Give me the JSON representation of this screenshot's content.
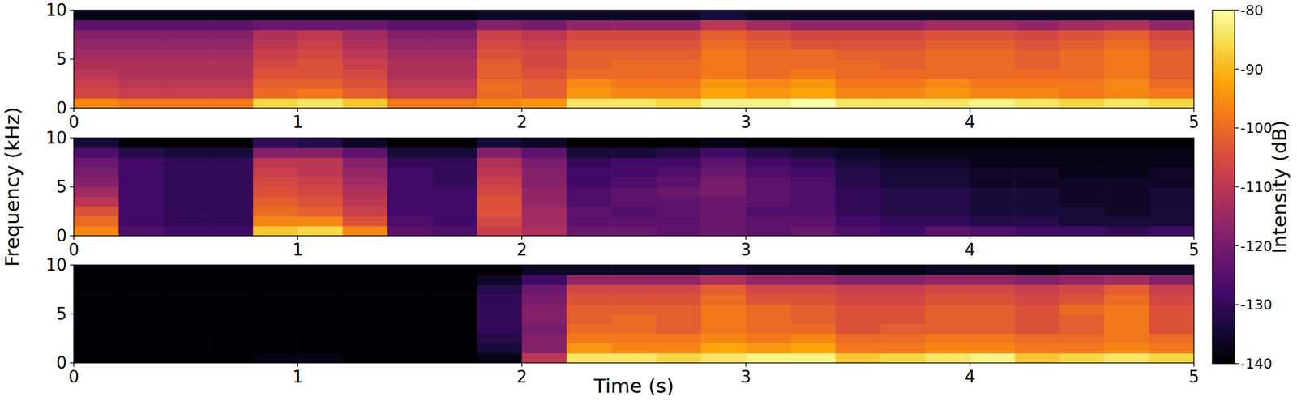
{
  "chart_data": {
    "type": "heatmap",
    "x_label": "Time (s)",
    "y_label": "Frequency (kHz)",
    "colorbar": {
      "label": "Intensity (dB)",
      "range": [
        -140,
        -80
      ],
      "ticks": [
        -140,
        -130,
        -120,
        -110,
        -100,
        -90,
        -80
      ]
    },
    "panels": [
      {
        "xlim": [
          0,
          5
        ],
        "ylim": [
          0,
          10
        ],
        "xticks": [
          0,
          1,
          2,
          3,
          4,
          5
        ],
        "yticks": [
          0,
          5,
          10
        ],
        "x_edges": [
          0,
          0.2,
          0.4,
          0.6,
          0.8,
          1,
          1.2,
          1.4,
          1.6,
          1.8,
          2,
          2.2,
          2.4,
          2.6,
          2.8,
          3,
          3.2,
          3.4,
          3.6,
          3.8,
          4,
          4.2,
          4.4,
          4.6,
          4.8,
          5
        ],
        "y_edges": [
          0,
          1,
          2,
          3,
          4,
          5,
          6,
          7,
          8,
          9,
          10
        ],
        "values": [
          [
            -96,
            -98,
            -98,
            -98,
            -86,
            -84,
            -88,
            -98,
            -98,
            -96,
            -94,
            -84,
            -84,
            -86,
            -82,
            -82,
            -80,
            -84,
            -84,
            -84,
            -82,
            -84,
            -86,
            -84,
            -86
          ],
          [
            -106,
            -108,
            -108,
            -108,
            -100,
            -98,
            -102,
            -108,
            -108,
            -100,
            -102,
            -94,
            -96,
            -96,
            -92,
            -94,
            -92,
            -96,
            -96,
            -94,
            -96,
            -96,
            -98,
            -96,
            -98
          ],
          [
            -108,
            -110,
            -110,
            -110,
            -102,
            -102,
            -104,
            -110,
            -110,
            -100,
            -102,
            -96,
            -98,
            -98,
            -94,
            -96,
            -94,
            -98,
            -98,
            -96,
            -98,
            -98,
            -98,
            -96,
            -100
          ],
          [
            -110,
            -112,
            -112,
            -112,
            -104,
            -104,
            -106,
            -112,
            -112,
            -102,
            -104,
            -100,
            -100,
            -100,
            -98,
            -100,
            -98,
            -100,
            -100,
            -100,
            -100,
            -100,
            -100,
            -98,
            -102
          ],
          [
            -112,
            -112,
            -112,
            -112,
            -106,
            -104,
            -108,
            -112,
            -112,
            -102,
            -106,
            -102,
            -100,
            -100,
            -98,
            -100,
            -100,
            -100,
            -102,
            -100,
            -100,
            -102,
            -100,
            -98,
            -102
          ],
          [
            -114,
            -114,
            -114,
            -114,
            -108,
            -106,
            -110,
            -114,
            -114,
            -104,
            -106,
            -102,
            -102,
            -102,
            -98,
            -100,
            -100,
            -102,
            -102,
            -100,
            -100,
            -102,
            -100,
            -98,
            -102
          ],
          [
            -116,
            -116,
            -116,
            -116,
            -110,
            -108,
            -112,
            -116,
            -116,
            -106,
            -108,
            -104,
            -104,
            -104,
            -100,
            -102,
            -104,
            -104,
            -104,
            -102,
            -102,
            -104,
            -102,
            -100,
            -104
          ],
          [
            -118,
            -118,
            -118,
            -118,
            -112,
            -110,
            -114,
            -118,
            -118,
            -108,
            -110,
            -106,
            -106,
            -106,
            -102,
            -104,
            -106,
            -106,
            -106,
            -104,
            -104,
            -106,
            -104,
            -102,
            -106
          ],
          [
            -124,
            -124,
            -124,
            -124,
            -122,
            -122,
            -122,
            -124,
            -124,
            -118,
            -120,
            -116,
            -116,
            -116,
            -110,
            -114,
            -116,
            -116,
            -116,
            -114,
            -114,
            -116,
            -114,
            -112,
            -116
          ],
          [
            -138,
            -138,
            -138,
            -138,
            -138,
            -138,
            -138,
            -138,
            -138,
            -136,
            -136,
            -136,
            -136,
            -136,
            -134,
            -136,
            -136,
            -136,
            -136,
            -136,
            -136,
            -136,
            -136,
            -136,
            -136
          ]
        ]
      },
      {
        "xlim": [
          0,
          5
        ],
        "ylim": [
          0,
          10
        ],
        "xticks": [
          0,
          1,
          2,
          3,
          4,
          5
        ],
        "yticks": [
          0,
          5,
          10
        ],
        "x_edges": [
          0,
          0.2,
          0.4,
          0.6,
          0.8,
          1,
          1.2,
          1.4,
          1.6,
          1.8,
          2,
          2.2,
          2.4,
          2.6,
          2.8,
          3,
          3.2,
          3.4,
          3.6,
          3.8,
          4,
          4.2,
          4.4,
          4.6,
          4.8,
          5
        ],
        "y_edges": [
          0,
          1,
          2,
          3,
          4,
          5,
          6,
          7,
          8,
          9,
          10
        ],
        "values": [
          [
            -96,
            -126,
            -128,
            -128,
            -88,
            -86,
            -96,
            -124,
            -126,
            -108,
            -112,
            -122,
            -122,
            -124,
            -122,
            -124,
            -122,
            -126,
            -128,
            -124,
            -126,
            -128,
            -128,
            -130,
            -128
          ],
          [
            -100,
            -128,
            -130,
            -130,
            -96,
            -96,
            -104,
            -126,
            -128,
            -106,
            -114,
            -124,
            -124,
            -124,
            -122,
            -124,
            -124,
            -128,
            -130,
            -130,
            -132,
            -132,
            -134,
            -134,
            -134
          ],
          [
            -104,
            -128,
            -130,
            -130,
            -100,
            -102,
            -108,
            -128,
            -128,
            -104,
            -114,
            -124,
            -126,
            -124,
            -122,
            -126,
            -126,
            -130,
            -132,
            -132,
            -134,
            -134,
            -134,
            -136,
            -134
          ],
          [
            -110,
            -128,
            -130,
            -130,
            -102,
            -104,
            -110,
            -128,
            -128,
            -104,
            -116,
            -126,
            -124,
            -124,
            -122,
            -124,
            -126,
            -130,
            -132,
            -132,
            -134,
            -134,
            -136,
            -136,
            -134
          ],
          [
            -114,
            -128,
            -130,
            -130,
            -104,
            -106,
            -112,
            -128,
            -128,
            -106,
            -116,
            -126,
            -124,
            -122,
            -120,
            -124,
            -126,
            -130,
            -132,
            -132,
            -134,
            -134,
            -136,
            -136,
            -134
          ],
          [
            -118,
            -128,
            -130,
            -130,
            -106,
            -108,
            -114,
            -128,
            -130,
            -108,
            -118,
            -128,
            -126,
            -124,
            -120,
            -124,
            -126,
            -132,
            -134,
            -134,
            -136,
            -136,
            -136,
            -136,
            -136
          ],
          [
            -120,
            -128,
            -130,
            -130,
            -108,
            -110,
            -116,
            -128,
            -130,
            -110,
            -118,
            -128,
            -128,
            -126,
            -122,
            -126,
            -128,
            -132,
            -134,
            -134,
            -136,
            -136,
            -138,
            -138,
            -136
          ],
          [
            -122,
            -128,
            -130,
            -130,
            -110,
            -110,
            -118,
            -130,
            -130,
            -112,
            -120,
            -130,
            -128,
            -128,
            -124,
            -128,
            -130,
            -134,
            -136,
            -136,
            -138,
            -138,
            -138,
            -138,
            -138
          ],
          [
            -126,
            -132,
            -134,
            -134,
            -118,
            -118,
            -124,
            -134,
            -134,
            -118,
            -124,
            -134,
            -134,
            -132,
            -128,
            -132,
            -134,
            -136,
            -138,
            -138,
            -138,
            -138,
            -138,
            -138,
            -138
          ],
          [
            -134,
            -140,
            -140,
            -140,
            -130,
            -132,
            -136,
            -140,
            -140,
            -134,
            -136,
            -140,
            -140,
            -140,
            -138,
            -140,
            -140,
            -140,
            -140,
            -140,
            -140,
            -140,
            -140,
            -140,
            -140
          ]
        ]
      },
      {
        "xlim": [
          0,
          5
        ],
        "ylim": [
          0,
          10
        ],
        "xticks": [
          0,
          1,
          2,
          3,
          4,
          5
        ],
        "yticks": [
          0,
          5,
          10
        ],
        "x_edges": [
          0,
          0.2,
          0.4,
          0.6,
          0.8,
          1,
          1.2,
          1.4,
          1.6,
          1.8,
          2,
          2.2,
          2.4,
          2.6,
          2.8,
          3,
          3.2,
          3.4,
          3.6,
          3.8,
          4,
          4.2,
          4.4,
          4.6,
          4.8,
          5
        ],
        "y_edges": [
          0,
          1,
          2,
          3,
          4,
          5,
          6,
          7,
          8,
          9,
          10
        ],
        "values": [
          [
            -140,
            -140,
            -140,
            -140,
            -138,
            -138,
            -140,
            -140,
            -140,
            -138,
            -110,
            -84,
            -84,
            -86,
            -84,
            -82,
            -82,
            -88,
            -86,
            -84,
            -82,
            -88,
            -86,
            -84,
            -86
          ],
          [
            -140,
            -140,
            -140,
            -140,
            -140,
            -140,
            -140,
            -140,
            -140,
            -134,
            -118,
            -94,
            -96,
            -96,
            -92,
            -94,
            -92,
            -98,
            -98,
            -96,
            -96,
            -98,
            -98,
            -96,
            -98
          ],
          [
            -140,
            -140,
            -140,
            -140,
            -140,
            -140,
            -140,
            -140,
            -140,
            -132,
            -118,
            -98,
            -98,
            -98,
            -96,
            -98,
            -96,
            -100,
            -100,
            -98,
            -98,
            -100,
            -100,
            -98,
            -100
          ],
          [
            -140,
            -140,
            -140,
            -140,
            -140,
            -140,
            -140,
            -140,
            -140,
            -130,
            -120,
            -100,
            -100,
            -102,
            -98,
            -100,
            -100,
            -104,
            -102,
            -102,
            -102,
            -104,
            -102,
            -98,
            -104
          ],
          [
            -140,
            -140,
            -140,
            -140,
            -140,
            -140,
            -140,
            -140,
            -140,
            -130,
            -118,
            -102,
            -100,
            -102,
            -98,
            -100,
            -102,
            -104,
            -104,
            -102,
            -102,
            -104,
            -102,
            -98,
            -104
          ],
          [
            -140,
            -140,
            -140,
            -140,
            -140,
            -140,
            -140,
            -140,
            -140,
            -130,
            -118,
            -102,
            -102,
            -102,
            -98,
            -100,
            -102,
            -104,
            -104,
            -102,
            -102,
            -104,
            -100,
            -98,
            -104
          ],
          [
            -140,
            -140,
            -140,
            -140,
            -140,
            -140,
            -140,
            -140,
            -140,
            -130,
            -120,
            -104,
            -104,
            -104,
            -100,
            -104,
            -104,
            -106,
            -106,
            -104,
            -104,
            -106,
            -104,
            -100,
            -106
          ],
          [
            -140,
            -140,
            -140,
            -140,
            -140,
            -140,
            -140,
            -140,
            -140,
            -132,
            -122,
            -106,
            -106,
            -106,
            -102,
            -106,
            -106,
            -108,
            -108,
            -106,
            -106,
            -108,
            -106,
            -102,
            -108
          ],
          [
            -140,
            -140,
            -140,
            -140,
            -140,
            -140,
            -140,
            -140,
            -140,
            -136,
            -128,
            -116,
            -116,
            -116,
            -112,
            -116,
            -116,
            -118,
            -118,
            -116,
            -116,
            -118,
            -116,
            -114,
            -118
          ],
          [
            -140,
            -140,
            -140,
            -140,
            -140,
            -140,
            -140,
            -140,
            -140,
            -140,
            -136,
            -136,
            -136,
            -136,
            -134,
            -136,
            -136,
            -138,
            -138,
            -136,
            -136,
            -138,
            -136,
            -136,
            -136
          ]
        ]
      }
    ]
  }
}
